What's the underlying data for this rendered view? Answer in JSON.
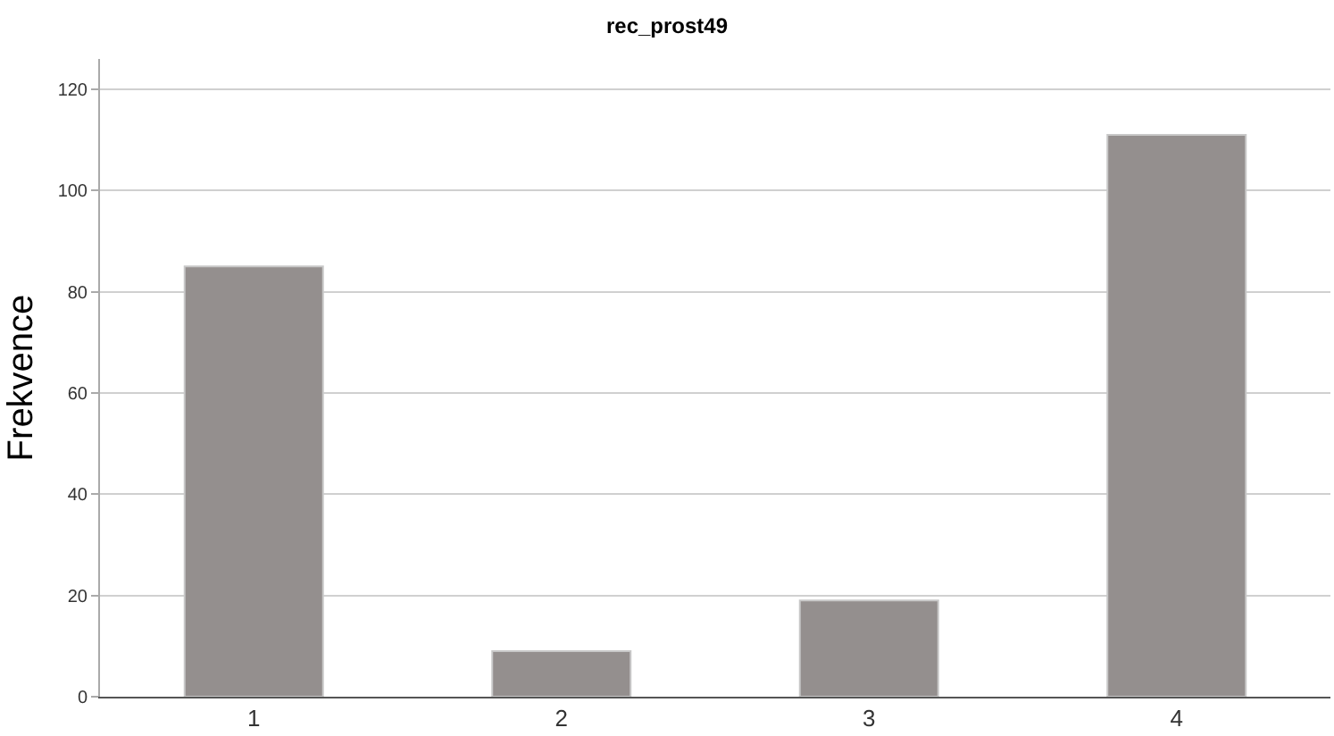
{
  "chart_data": {
    "type": "bar",
    "title": "rec_prost49",
    "ylabel": "Frekvence",
    "categories": [
      "1",
      "2",
      "3",
      "4"
    ],
    "values": [
      85,
      9,
      19,
      111
    ],
    "color": "#948f8e",
    "ylim": [
      0,
      126
    ],
    "yticks": [
      0,
      20,
      40,
      60,
      80,
      100,
      120
    ],
    "grid": "y"
  }
}
